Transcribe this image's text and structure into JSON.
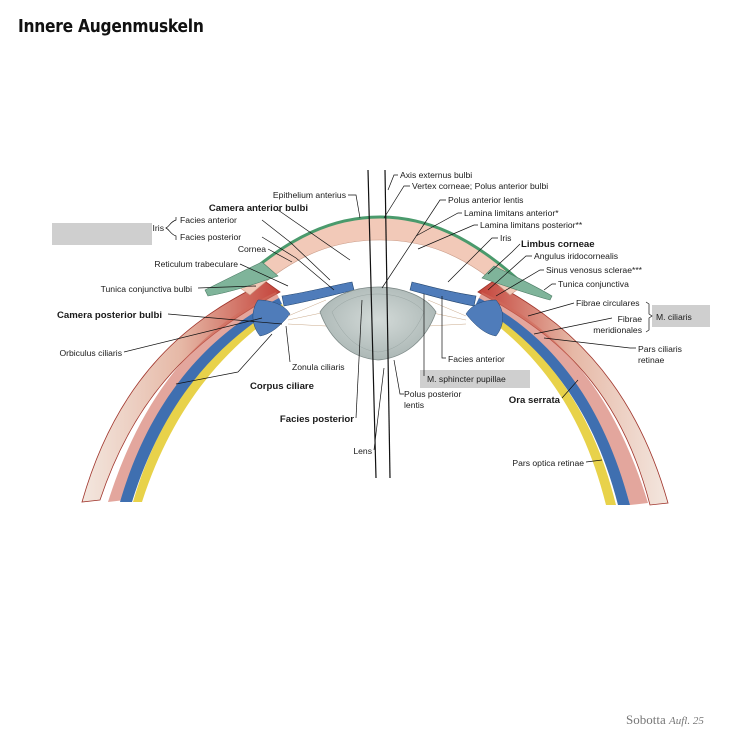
{
  "title": "Innere Augenmuskeln",
  "credit": {
    "brand": "Sobotta",
    "edition": "Aufl. 25"
  },
  "labels": {
    "axis_externus": "Axis externus bulbi",
    "vertex_corneae": "Vertex corneae; Polus anterior bulbi",
    "epithelium_anterius": "Epithelium anterius",
    "polus_anterior_lentis": "Polus anterior lentis",
    "camera_anterior": "Camera anterior bulbi",
    "lamina_anterior": "Lamina limitans anterior*",
    "lamina_posterior": "Lamina limitans posterior**",
    "iris_left": "Iris",
    "facies_anterior_iris": "Facies anterior",
    "facies_posterior_iris": "Facies posterior",
    "iris_right": "Iris",
    "cornea": "Cornea",
    "limbus": "Limbus corneae",
    "angulus": "Angulus iridocornealis",
    "reticulum": "Reticulum trabeculare",
    "sinus": "Sinus venosus sclerae***",
    "tunica_right": "Tunica conjunctiva",
    "tunica_left": "Tunica conjunctiva bulbi",
    "fibrae_circulares": "Fibrae circulares",
    "camera_posterior": "Camera posterior bulbi",
    "fibrae_meridionales_1": "Fibrae",
    "fibrae_meridionales_2": "meridionales",
    "m_ciliaris": "M. ciliaris",
    "orbiculus": "Orbiculus ciliaris",
    "zonula": "Zonula ciliaris",
    "facies_anterior_lens": "Facies anterior",
    "pars_ciliaris_1": "Pars ciliaris",
    "pars_ciliaris_2": "retinae",
    "corpus_ciliare": "Corpus ciliare",
    "m_sphincter": "M. sphincter pupillae",
    "polus_posterior_1": "Polus posterior",
    "polus_posterior_2": "lentis",
    "ora_serrata": "Ora serrata",
    "facies_posterior": "Facies posterior",
    "lens": "Lens",
    "pars_optica": "Pars optica retinae"
  },
  "colors": {
    "sclera_muscle": "#c9463c",
    "cornea": "#f2c9b8",
    "conjunctiva": "#7fb49a",
    "choroid": "#3f6fb0",
    "retina": "#e8d24a",
    "lens": "#b9c3c2",
    "highlight_box": "#cfcfcf"
  }
}
